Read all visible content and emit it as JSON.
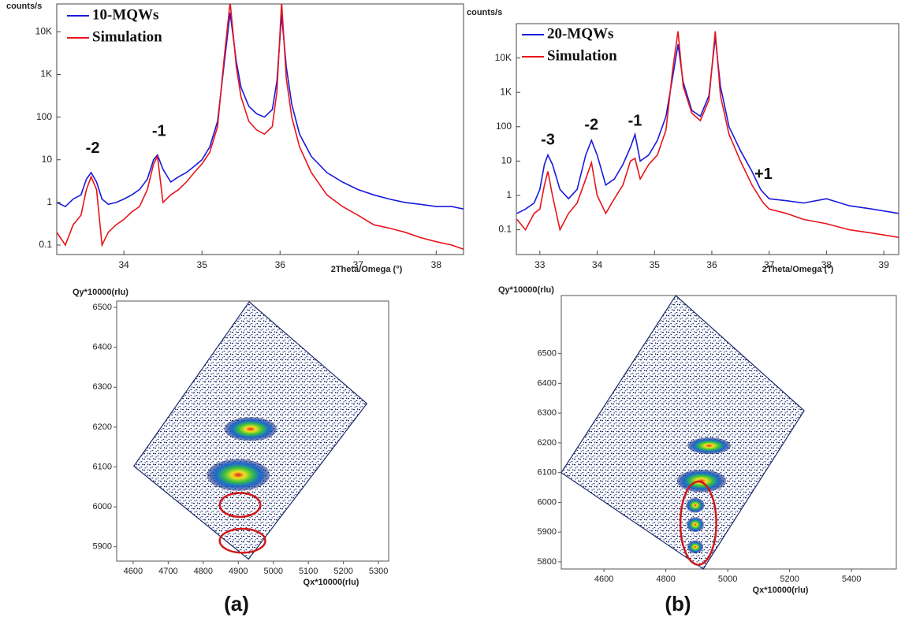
{
  "panel_labels": [
    "(a)",
    "(b)"
  ],
  "chart_data": [
    {
      "type": "line",
      "ylabel": "counts/s",
      "xlabel": "2Theta/Omega (°)",
      "log_y": true,
      "xlim": [
        33.14,
        38.35
      ],
      "ylim": [
        0.06,
        45000
      ],
      "xticks": [
        34,
        35,
        36,
        37,
        38
      ],
      "yticks": [
        0.1,
        1,
        10,
        100,
        {
          "value": 1000,
          "label": "1K"
        },
        {
          "value": 10000,
          "label": "10K"
        }
      ],
      "legend": "upper left",
      "annotations": [
        {
          "text": "-2",
          "x": 33.6,
          "y": 18
        },
        {
          "text": "-1",
          "x": 34.45,
          "y": 45
        }
      ],
      "x": [
        33.14,
        33.25,
        33.35,
        33.45,
        33.52,
        33.58,
        33.65,
        33.72,
        33.8,
        33.9,
        34.0,
        34.1,
        34.2,
        34.3,
        34.38,
        34.43,
        34.5,
        34.6,
        34.7,
        34.8,
        34.9,
        35.0,
        35.1,
        35.2,
        35.28,
        35.36,
        35.44,
        35.5,
        35.6,
        35.7,
        35.8,
        35.9,
        35.96,
        36.02,
        36.08,
        36.15,
        36.25,
        36.4,
        36.6,
        36.8,
        37.0,
        37.2,
        37.4,
        37.6,
        37.8,
        38.0,
        38.2,
        38.35
      ],
      "series": [
        {
          "name": "10-MQWs",
          "color": "#1a1adc",
          "values": [
            1,
            0.8,
            1.2,
            1.5,
            3.5,
            5,
            3,
            1.2,
            0.9,
            1,
            1.2,
            1.5,
            2,
            3.5,
            10,
            13,
            6,
            3,
            4,
            5,
            7,
            10,
            20,
            80,
            1500,
            28000,
            2000,
            500,
            180,
            120,
            100,
            150,
            700,
            25000,
            1500,
            200,
            40,
            12,
            5,
            3,
            2,
            1.5,
            1.2,
            1,
            0.9,
            0.8,
            0.8,
            0.7
          ]
        },
        {
          "name": "Simulation",
          "color": "#e8141a",
          "values": [
            0.2,
            0.1,
            0.3,
            0.5,
            2,
            4,
            2,
            0.1,
            0.2,
            0.3,
            0.4,
            0.6,
            0.8,
            2,
            8,
            12,
            1,
            1.5,
            2,
            3,
            5,
            8,
            15,
            60,
            2000,
            50000,
            1500,
            300,
            80,
            50,
            40,
            60,
            400,
            50000,
            800,
            100,
            20,
            5,
            1.5,
            0.8,
            0.5,
            0.3,
            0.25,
            0.2,
            0.15,
            0.12,
            0.1,
            0.08
          ]
        }
      ]
    },
    {
      "type": "line",
      "ylabel": "counts/s",
      "xlabel": "2Theta/Omega (°)",
      "log_y": true,
      "xlim": [
        32.59,
        39.26
      ],
      "ylim": [
        0.019,
        100000
      ],
      "xticks": [
        33,
        34,
        35,
        36,
        37,
        38,
        39
      ],
      "yticks": [
        0.1,
        1,
        10,
        100,
        {
          "value": 1000,
          "label": "1K"
        },
        {
          "value": 10000,
          "label": "10K"
        }
      ],
      "legend": "upper left",
      "annotations": [
        {
          "text": "-3",
          "x": 33.14,
          "y": 40
        },
        {
          "text": "-2",
          "x": 33.9,
          "y": 110
        },
        {
          "text": "-1",
          "x": 34.66,
          "y": 140
        },
        {
          "text": "+1",
          "x": 36.9,
          "y": 4
        }
      ],
      "x": [
        32.6,
        32.75,
        32.9,
        33.0,
        33.08,
        33.14,
        33.22,
        33.35,
        33.5,
        33.65,
        33.8,
        33.9,
        34.0,
        34.15,
        34.3,
        34.45,
        34.58,
        34.66,
        34.75,
        34.9,
        35.05,
        35.2,
        35.32,
        35.41,
        35.5,
        35.65,
        35.8,
        35.95,
        36.06,
        36.15,
        36.3,
        36.5,
        36.7,
        36.85,
        36.9,
        37.0,
        37.3,
        37.6,
        38.0,
        38.4,
        38.8,
        39.26
      ],
      "series": [
        {
          "name": "20-MQWs",
          "color": "#1a1adc",
          "values": [
            0.3,
            0.4,
            0.6,
            1.5,
            8,
            15,
            8,
            1.5,
            0.8,
            1.5,
            15,
            40,
            15,
            2,
            3,
            8,
            25,
            60,
            10,
            15,
            40,
            200,
            3000,
            25000,
            2000,
            300,
            200,
            800,
            40000,
            1500,
            100,
            20,
            5,
            1.5,
            1.2,
            0.8,
            0.7,
            0.6,
            0.8,
            0.5,
            0.4,
            0.3
          ]
        },
        {
          "name": "Simulation",
          "color": "#e8141a",
          "values": [
            0.2,
            0.1,
            0.3,
            0.4,
            2,
            5,
            1,
            0.1,
            0.3,
            0.6,
            3,
            9,
            1,
            0.3,
            0.8,
            2,
            10,
            12,
            3,
            8,
            15,
            80,
            5000,
            60000,
            1500,
            250,
            150,
            600,
            60000,
            800,
            60,
            10,
            2,
            0.8,
            0.6,
            0.4,
            0.3,
            0.2,
            0.15,
            0.1,
            0.08,
            0.06
          ]
        }
      ]
    },
    {
      "type": "map",
      "ylabel": "Qy*10000(rlu)",
      "xlabel": "Qx*10000(rlu)",
      "xlim": [
        4553,
        5329
      ],
      "ylim": [
        5864,
        6516
      ],
      "xticks": [
        4600,
        4700,
        4800,
        4900,
        5000,
        5100,
        5200,
        5300
      ],
      "yticks": [
        5900,
        6000,
        6100,
        6200,
        6300,
        6400,
        6500
      ],
      "outline_x": [
        4931,
        5267,
        4929,
        4602
      ],
      "outline_y": [
        6514,
        6259,
        5869,
        6102
      ],
      "peaks": [
        {
          "x": 4935,
          "y": 6195,
          "rx": 75,
          "ry": 30
        },
        {
          "x": 4900,
          "y": 6080,
          "rx": 90,
          "ry": 40
        }
      ],
      "highlights": [
        {
          "x": 4905,
          "y": 6005,
          "rx": 58,
          "ry": 30
        },
        {
          "x": 4912,
          "y": 5915,
          "rx": 65,
          "ry": 30
        }
      ]
    },
    {
      "type": "map",
      "ylabel": "Qy*10000(rlu)",
      "xlabel": "Qx*10000(rlu)",
      "xlim": [
        4462,
        5545
      ],
      "ylim": [
        5776,
        6695
      ],
      "xticks": [
        4600,
        4800,
        5000,
        5200,
        5400
      ],
      "yticks": [
        5800,
        5900,
        6000,
        6100,
        6200,
        6300,
        6400,
        6500
      ],
      "outline_x": [
        4832,
        5247,
        4921,
        4462
      ],
      "outline_y": [
        6695,
        6308,
        5776,
        6100
      ],
      "peaks": [
        {
          "x": 4940,
          "y": 6190,
          "rx": 70,
          "ry": 28
        },
        {
          "x": 4915,
          "y": 6072,
          "rx": 80,
          "ry": 38
        },
        {
          "x": 4895,
          "y": 5990,
          "rx": 30,
          "ry": 25
        },
        {
          "x": 4895,
          "y": 5925,
          "rx": 28,
          "ry": 25
        },
        {
          "x": 4895,
          "y": 5850,
          "rx": 26,
          "ry": 22
        }
      ],
      "highlights": [
        {
          "x": 4905,
          "y": 5930,
          "rx": 58,
          "ry": 140
        }
      ]
    }
  ]
}
